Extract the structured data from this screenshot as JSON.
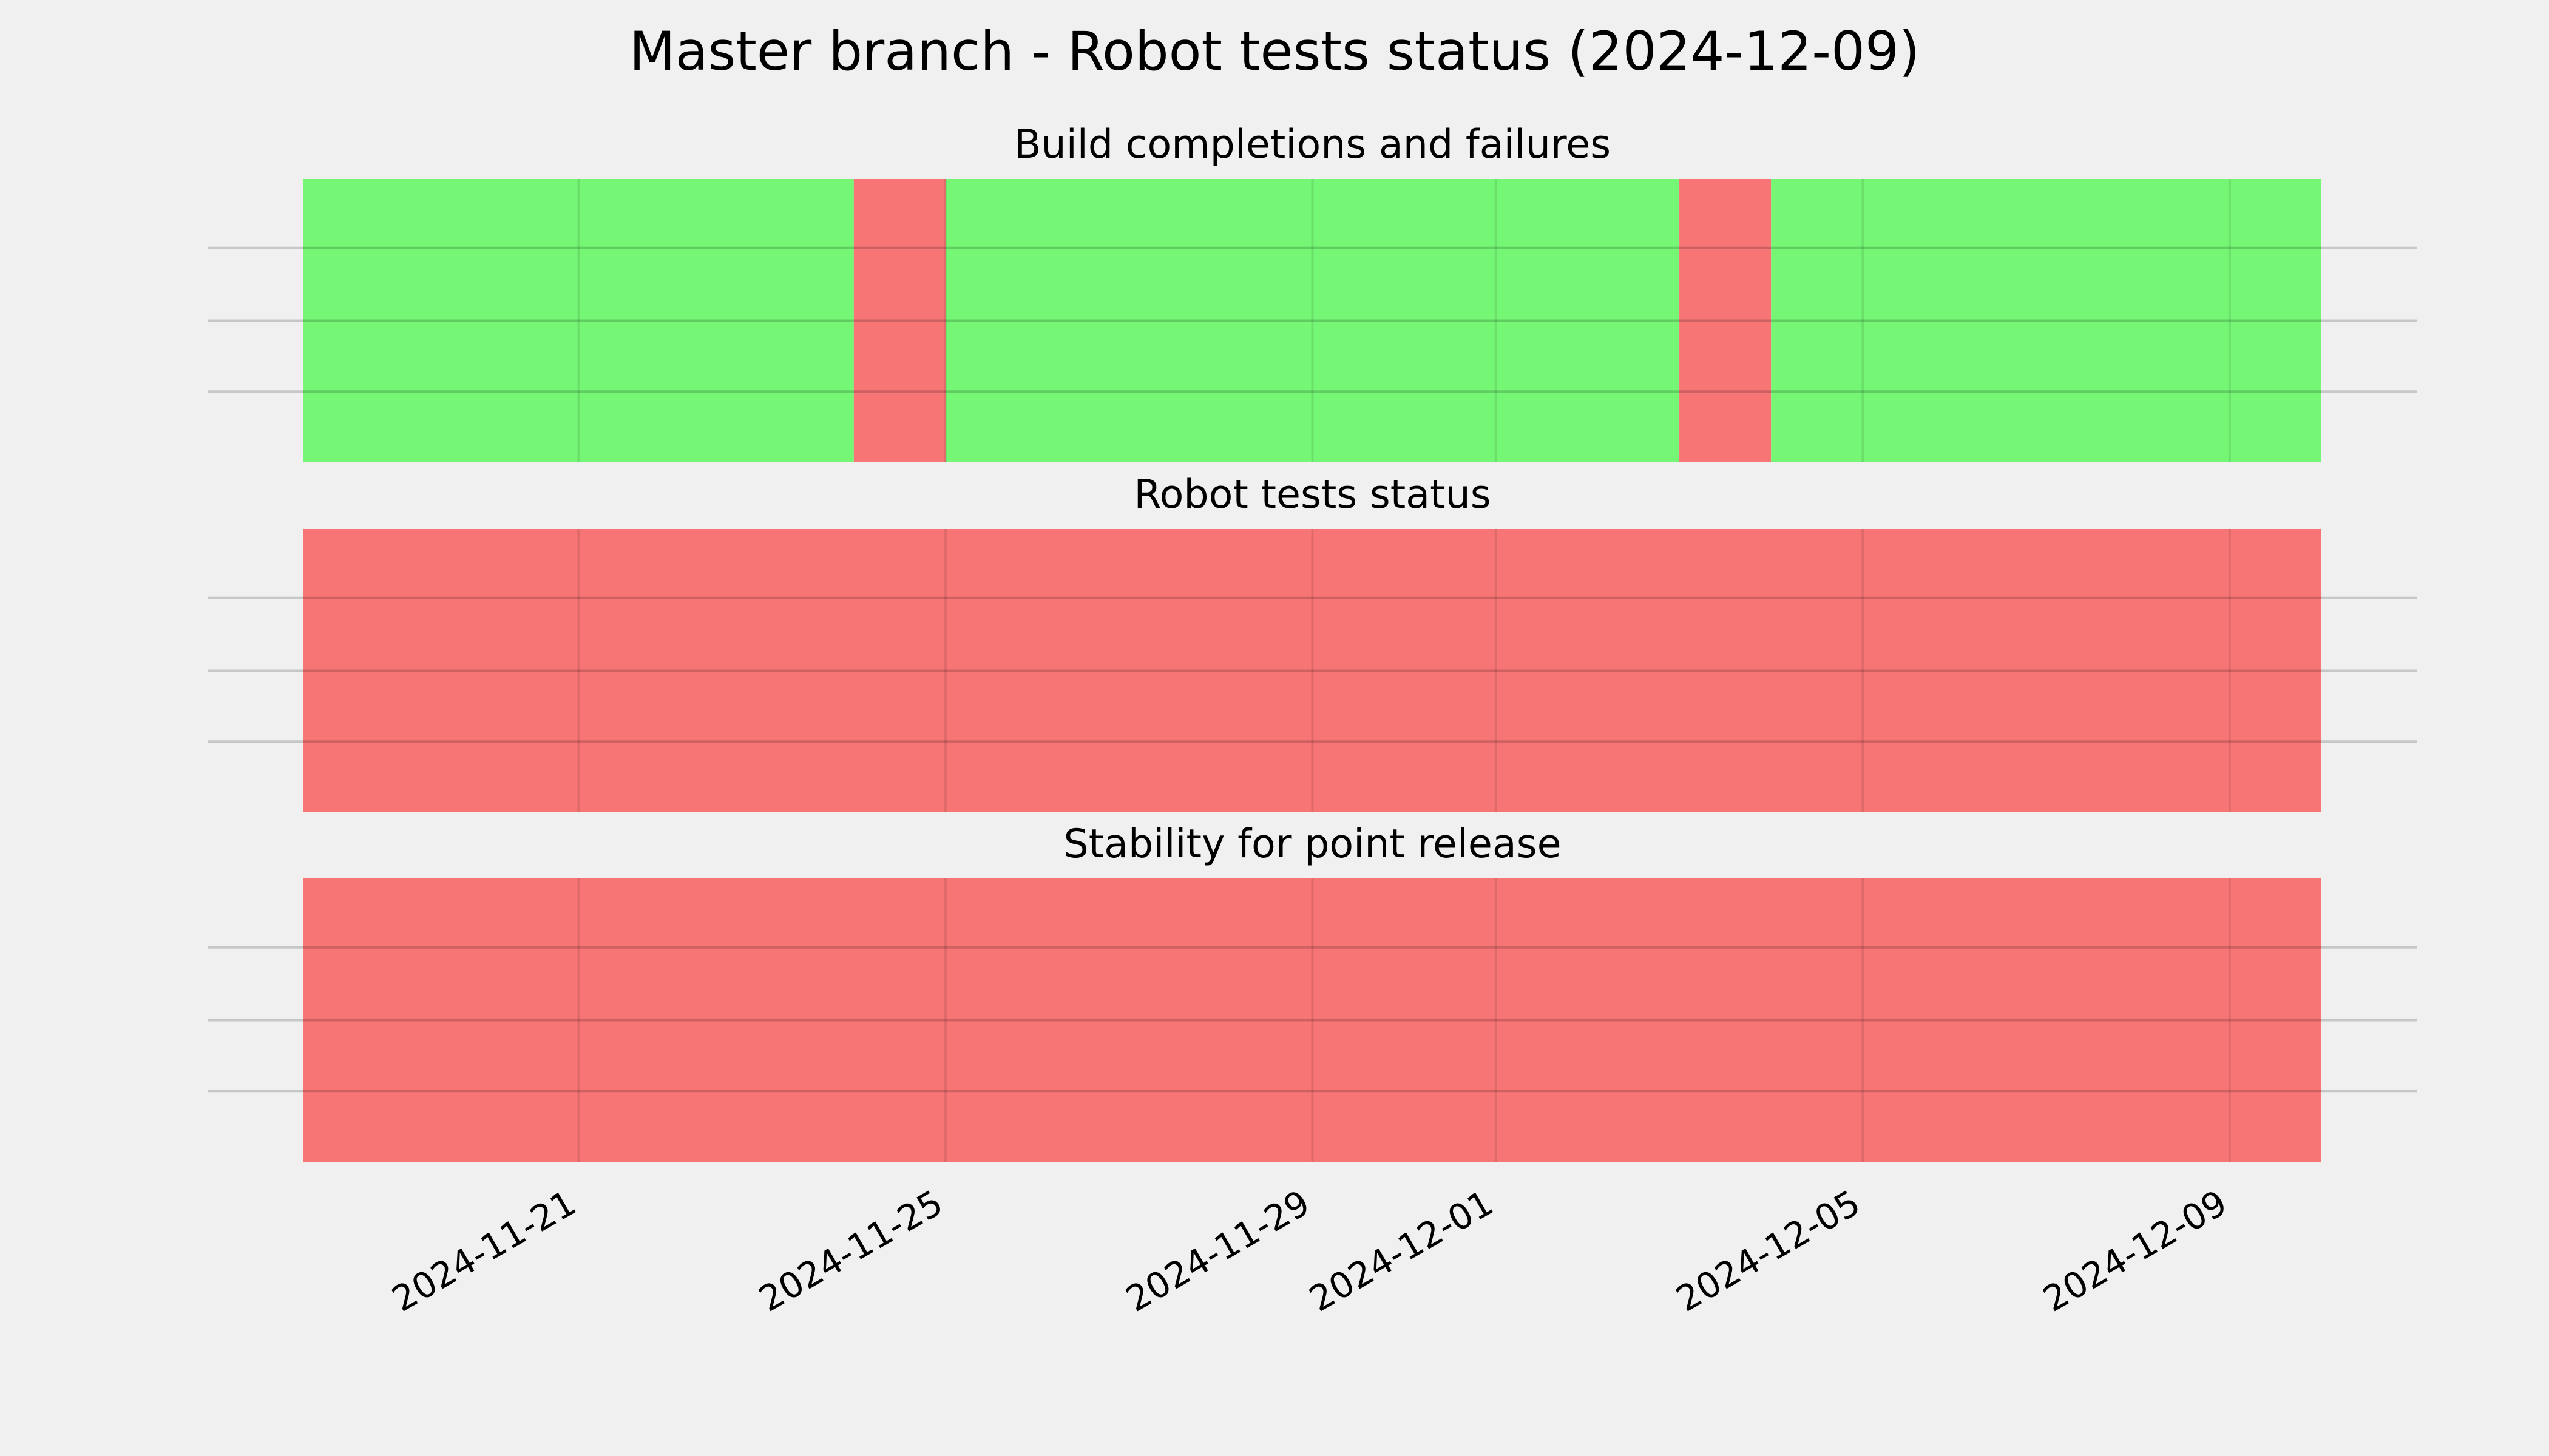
{
  "chart_data": {
    "type": "timeline",
    "title": "Master branch - Robot tests status (2024-12-09)",
    "x_range": [
      "2024-11-18",
      "2024-12-10"
    ],
    "xticks": [
      "2024-11-21",
      "2024-11-25",
      "2024-11-29",
      "2024-12-01",
      "2024-12-05",
      "2024-12-09"
    ],
    "grid": true,
    "status_colors": {
      "pass": "#75f775",
      "fail": "#f77575"
    },
    "panels": [
      {
        "title": "Build completions and failures",
        "segments": [
          {
            "start": "2024-11-18",
            "end": "2024-11-24",
            "status": "pass"
          },
          {
            "start": "2024-11-24",
            "end": "2024-11-25",
            "status": "fail"
          },
          {
            "start": "2024-11-25",
            "end": "2024-12-03",
            "status": "pass"
          },
          {
            "start": "2024-12-03",
            "end": "2024-12-04",
            "status": "fail"
          },
          {
            "start": "2024-12-04",
            "end": "2024-12-10",
            "status": "pass"
          }
        ]
      },
      {
        "title": "Robot tests status",
        "segments": [
          {
            "start": "2024-11-18",
            "end": "2024-12-10",
            "status": "fail"
          }
        ]
      },
      {
        "title": "Stability for point release",
        "segments": [
          {
            "start": "2024-11-18",
            "end": "2024-12-10",
            "status": "fail"
          }
        ]
      }
    ]
  }
}
